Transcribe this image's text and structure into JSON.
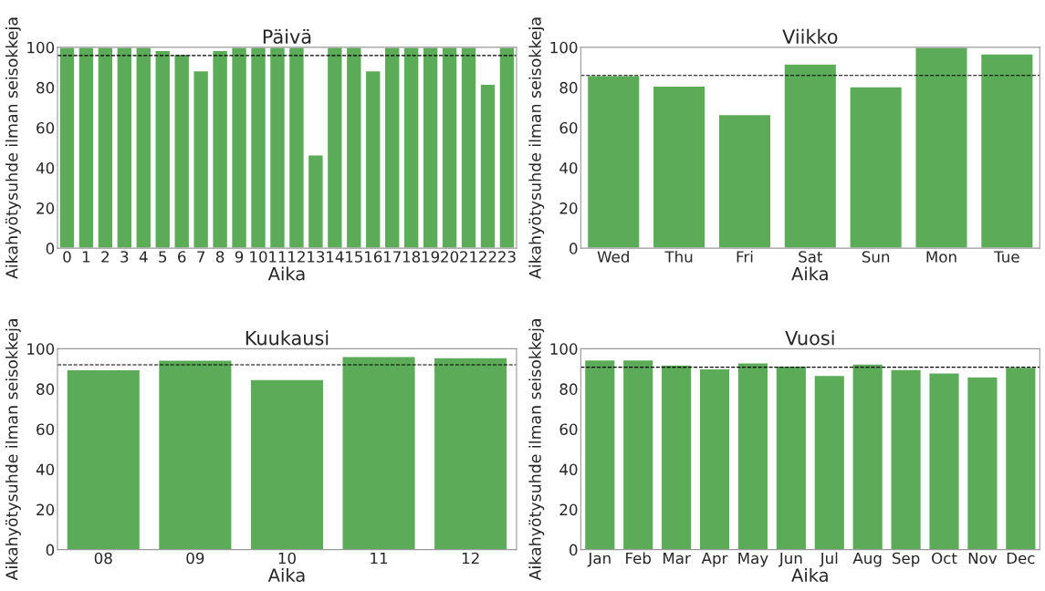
{
  "chart_data": [
    {
      "type": "bar",
      "title": "Päivä",
      "xlabel": "Aika",
      "ylabel": "Aikahyötysuhde ilman seisokkeja",
      "categories": [
        "0",
        "1",
        "2",
        "3",
        "4",
        "5",
        "6",
        "7",
        "8",
        "9",
        "10",
        "11",
        "12",
        "13",
        "14",
        "15",
        "16",
        "17",
        "18",
        "19",
        "20",
        "21",
        "22",
        "23"
      ],
      "values": [
        100,
        100,
        100,
        100,
        100,
        98.4,
        96.5,
        88.3,
        98.4,
        100,
        100,
        100,
        100,
        46.5,
        100,
        100,
        88.3,
        100,
        100,
        100,
        100,
        100,
        81.6,
        100
      ],
      "color": "#5cab58",
      "ylim": [
        0,
        100
      ],
      "yticks": [
        0,
        20,
        40,
        60,
        80,
        100
      ],
      "ref_lines": [
        {
          "axis": "y",
          "value": 95.9,
          "color": "#000000",
          "line_style": "dashed"
        }
      ]
    },
    {
      "type": "bar",
      "title": "Viikko",
      "xlabel": "Aika",
      "ylabel": "Aikahyötysuhde ilman seisokkeja",
      "categories": [
        "Wed",
        "Thu",
        "Fri",
        "Sat",
        "Sun",
        "Mon",
        "Tue"
      ],
      "values": [
        86.0,
        80.7,
        66.5,
        91.7,
        80.4,
        100,
        96.7
      ],
      "color": "#5cab58",
      "ylim": [
        0,
        100
      ],
      "yticks": [
        0,
        20,
        40,
        60,
        80,
        100
      ],
      "ref_lines": [
        {
          "axis": "y",
          "value": 86.0,
          "color": "#000000",
          "line_style": "dashed"
        }
      ]
    },
    {
      "type": "bar",
      "title": "Kuukausi",
      "xlabel": "Aika",
      "ylabel": "Aikahyötysuhde ilman seisokkeja",
      "categories": [
        "08",
        "09",
        "10",
        "11",
        "12"
      ],
      "values": [
        89.6,
        94.3,
        84.7,
        96.1,
        95.6
      ],
      "color": "#5cab58",
      "ylim": [
        0,
        100
      ],
      "yticks": [
        0,
        20,
        40,
        60,
        80,
        100
      ],
      "ref_lines": [
        {
          "axis": "y",
          "value": 92.0,
          "color": "#000000",
          "line_style": "dashed"
        }
      ]
    },
    {
      "type": "bar",
      "title": "Vuosi",
      "xlabel": "Aika",
      "ylabel": "Aikahyötysuhde ilman seisokkeja",
      "categories": [
        "Jan",
        "Feb",
        "Mar",
        "Apr",
        "May",
        "Jun",
        "Jul",
        "Aug",
        "Sep",
        "Oct",
        "Nov",
        "Dec"
      ],
      "values": [
        94.4,
        94.4,
        91.9,
        90.0,
        93.0,
        91.4,
        86.7,
        92.4,
        89.7,
        88.0,
        86.0,
        90.8
      ],
      "color": "#5cab58",
      "ylim": [
        0,
        100
      ],
      "yticks": [
        0,
        20,
        40,
        60,
        80,
        100
      ],
      "ref_lines": [
        {
          "axis": "y",
          "value": 90.8,
          "color": "#000000",
          "line_style": "dashed"
        }
      ]
    }
  ]
}
